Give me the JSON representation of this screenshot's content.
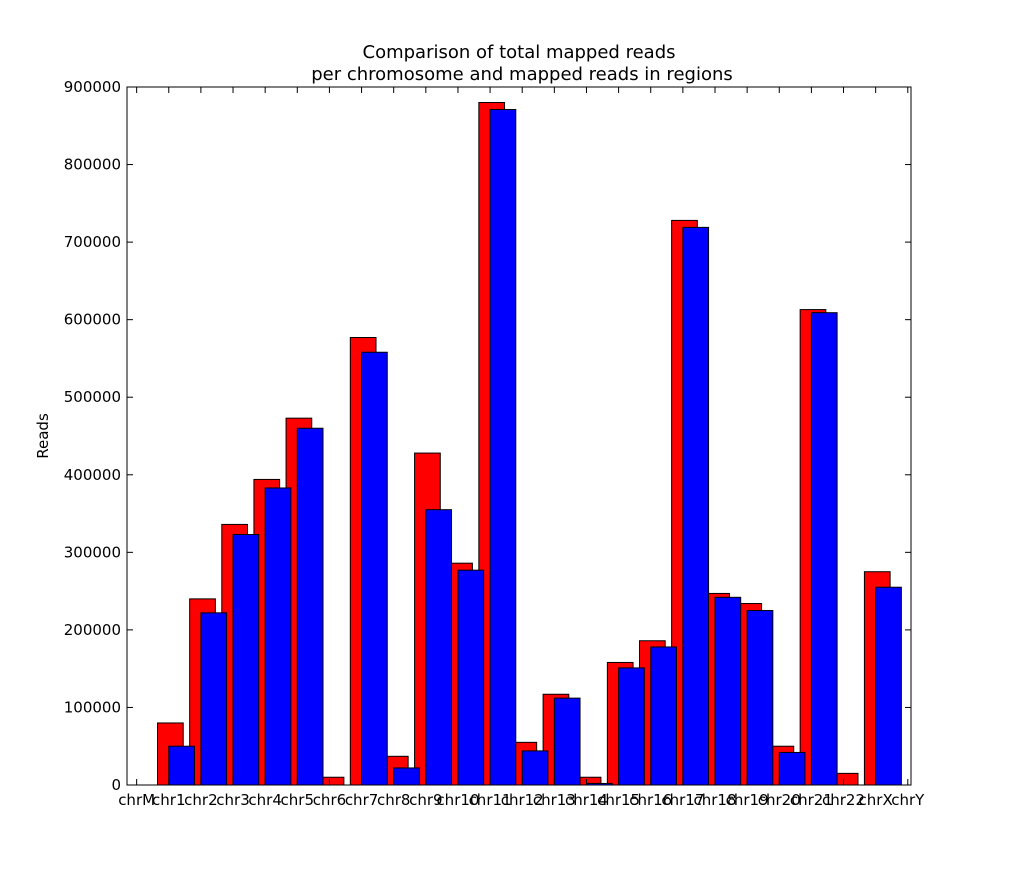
{
  "chart_data": {
    "type": "bar",
    "title": [
      "Comparison of total mapped reads",
      "per chromosome and mapped reads in regions"
    ],
    "xlabel": "",
    "ylabel": "Reads",
    "ylim": [
      0,
      900000
    ],
    "yticks": [
      0,
      100000,
      200000,
      300000,
      400000,
      500000,
      600000,
      700000,
      800000,
      900000
    ],
    "ytick_labels": [
      "0",
      "100000",
      "200000",
      "300000",
      "400000",
      "500000",
      "600000",
      "700000",
      "800000",
      "900000"
    ],
    "categories": [
      "chrM",
      "chr1",
      "chr2",
      "chr3",
      "chr4",
      "chr5",
      "chr6",
      "chr7",
      "chr8",
      "chr9",
      "chr10",
      "chr11",
      "chr12",
      "chr13",
      "chr14",
      "chr15",
      "chr16",
      "chr17",
      "chr18",
      "chr19",
      "chr20",
      "chr21",
      "chr22",
      "chrX",
      "chrY"
    ],
    "grid": false,
    "legend": "none",
    "series": [
      {
        "color": "#ff0000",
        "values": [
          0,
          80000,
          240000,
          336000,
          394000,
          473000,
          10000,
          577000,
          37000,
          428000,
          286000,
          880000,
          55000,
          117000,
          10000,
          158000,
          186000,
          728000,
          247000,
          234000,
          50000,
          613000,
          15000,
          275000,
          0
        ]
      },
      {
        "color": "#0000ff",
        "values": [
          0,
          50000,
          222000,
          323000,
          383000,
          460000,
          0,
          558000,
          22000,
          355000,
          277000,
          871000,
          44000,
          112000,
          2000,
          151000,
          178000,
          719000,
          242000,
          225000,
          42000,
          609000,
          0,
          255000,
          0
        ]
      }
    ]
  }
}
